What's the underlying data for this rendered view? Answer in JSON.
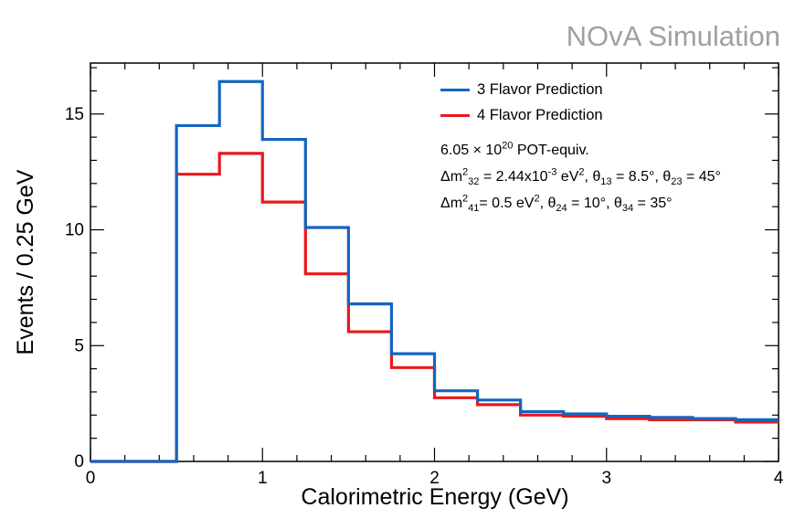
{
  "watermark": "NOvA Simulation",
  "chart_data": {
    "type": "histogram",
    "xlabel": "Calorimetric Energy (GeV)",
    "ylabel": "Events / 0.25 GeV",
    "xlim": [
      0,
      4
    ],
    "ylim": [
      0,
      17.2
    ],
    "xticks": [
      {
        "value": 0,
        "label": "0"
      },
      {
        "value": 1,
        "label": "1"
      },
      {
        "value": 2,
        "label": "2"
      },
      {
        "value": 3,
        "label": "3"
      },
      {
        "value": 4,
        "label": "4"
      }
    ],
    "yticks": [
      {
        "value": 0,
        "label": "0"
      },
      {
        "value": 5,
        "label": "5"
      },
      {
        "value": 10,
        "label": "10"
      },
      {
        "value": 15,
        "label": "15"
      }
    ],
    "bin_edges": [
      0,
      0.25,
      0.5,
      0.75,
      1.0,
      1.25,
      1.5,
      1.75,
      2.0,
      2.25,
      2.5,
      2.75,
      3.0,
      3.25,
      3.5,
      3.75,
      4.0
    ],
    "series": [
      {
        "name": "3 Flavor Prediction",
        "color": "#1565c0",
        "values": [
          0,
          0,
          14.5,
          16.4,
          13.9,
          10.1,
          6.8,
          4.65,
          3.05,
          2.65,
          2.15,
          2.05,
          1.95,
          1.9,
          1.85,
          1.8
        ]
      },
      {
        "name": "4 Flavor Prediction",
        "color": "#e8191c",
        "values": [
          0,
          0,
          12.4,
          13.3,
          11.2,
          8.1,
          5.6,
          4.05,
          2.75,
          2.45,
          2.0,
          1.95,
          1.85,
          1.8,
          1.8,
          1.7
        ]
      }
    ]
  },
  "annotations": {
    "line1": {
      "a": "6.05 × 10",
      "sup": "20",
      "b": " POT-equiv."
    },
    "line2": {
      "a": "Δm",
      "sup": "2",
      "sub": "32",
      "b": " = 2.44x10",
      "sup2": "-3",
      "c": " eV",
      "sup3": "2",
      "d": ", θ",
      "sub2": "13",
      "e": " = 8.5°, θ",
      "sub3": "23",
      "f": " = 45°"
    },
    "line3": {
      "a": "Δm",
      "sup": "2",
      "sub": "41",
      "b": "= 0.5 eV",
      "sup2": "2",
      "c": ", θ",
      "sub2": "24",
      "d": " = 10°, θ",
      "sub3": "34",
      "e": " = 35°"
    }
  }
}
